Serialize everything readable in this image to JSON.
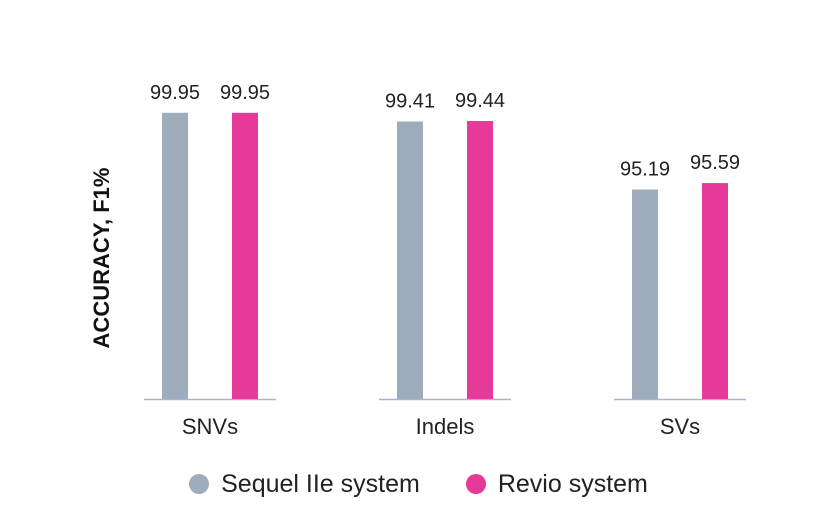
{
  "chart_data": {
    "type": "bar",
    "title": "",
    "xlabel": "",
    "ylabel": "ACCURACY, F1%",
    "categories": [
      "SNVs",
      "Indels",
      "SVs"
    ],
    "series": [
      {
        "name": "Sequel IIe system",
        "color": "#9eacbc",
        "values": [
          99.95,
          99.41,
          95.19
        ],
        "labels": [
          "99.95",
          "99.41",
          "95.19"
        ]
      },
      {
        "name": "Revio system",
        "color": "#e63a9a",
        "values": [
          99.95,
          99.44,
          95.59
        ],
        "labels": [
          "99.95",
          "99.44",
          "95.59"
        ]
      }
    ],
    "ylim": [
      82.2,
      100
    ],
    "grid": false,
    "legend": "bottom"
  }
}
